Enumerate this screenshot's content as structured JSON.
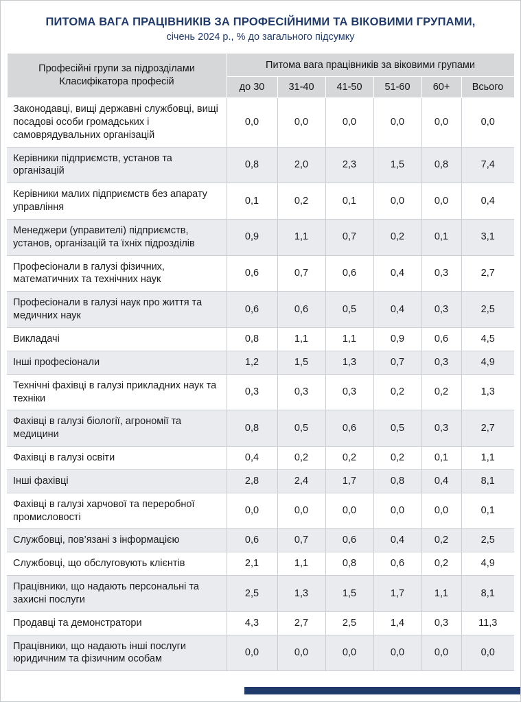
{
  "header": {
    "title": "ПИТОМА ВАГА ПРАЦІВНИКІВ ЗА ПРОФЕСІЙНИМИ ТА ВІКОВИМИ ГРУПАМИ,",
    "subtitle": "січень 2024 р., % до загального підсумку"
  },
  "colors": {
    "accent_navy": "#1f3a6b",
    "header_bg": "#d5d7d9",
    "stripe_bg": "#e9ebee"
  },
  "table": {
    "row_header": "Професійні групи за підрозділами Класифікатора професій",
    "col_group_header": "Питома вага працівників за віковими групами",
    "columns": [
      "до 30",
      "31-40",
      "41-50",
      "51-60",
      "60+",
      "Всього"
    ],
    "rows": [
      {
        "name": "Законодавці, вищі державні службовці, вищі посадові особи громадських і самоврядувальних організацій",
        "values": [
          "0,0",
          "0,0",
          "0,0",
          "0,0",
          "0,0",
          "0,0"
        ]
      },
      {
        "name": "Керівники підприємств, установ та організацій",
        "values": [
          "0,8",
          "2,0",
          "2,3",
          "1,5",
          "0,8",
          "7,4"
        ]
      },
      {
        "name": "Керівники малих підприємств без апарату управління",
        "values": [
          "0,1",
          "0,2",
          "0,1",
          "0,0",
          "0,0",
          "0,4"
        ]
      },
      {
        "name": "Менеджери (управителі) підприємств, установ, організацій та їхніх підрозділів",
        "values": [
          "0,9",
          "1,1",
          "0,7",
          "0,2",
          "0,1",
          "3,1"
        ]
      },
      {
        "name": "Професіонали в галузі фізичних, математичних та технічних наук",
        "values": [
          "0,6",
          "0,7",
          "0,6",
          "0,4",
          "0,3",
          "2,7"
        ]
      },
      {
        "name": "Професіонали в галузі наук про життя та медичних наук",
        "values": [
          "0,6",
          "0,6",
          "0,5",
          "0,4",
          "0,3",
          "2,5"
        ]
      },
      {
        "name": "Викладачі",
        "values": [
          "0,8",
          "1,1",
          "1,1",
          "0,9",
          "0,6",
          "4,5"
        ]
      },
      {
        "name": "Інші професіонали",
        "values": [
          "1,2",
          "1,5",
          "1,3",
          "0,7",
          "0,3",
          "4,9"
        ]
      },
      {
        "name": "Технічні фахівці в галузі прикладних наук та техніки",
        "values": [
          "0,3",
          "0,3",
          "0,3",
          "0,2",
          "0,2",
          "1,3"
        ]
      },
      {
        "name": "Фахівці в галузі біології, агрономії та медицини",
        "values": [
          "0,8",
          "0,5",
          "0,6",
          "0,5",
          "0,3",
          "2,7"
        ]
      },
      {
        "name": "Фахівці в галузі освіти",
        "values": [
          "0,4",
          "0,2",
          "0,2",
          "0,2",
          "0,1",
          "1,1"
        ]
      },
      {
        "name": "Інші фахівці",
        "values": [
          "2,8",
          "2,4",
          "1,7",
          "0,8",
          "0,4",
          "8,1"
        ]
      },
      {
        "name": "Фахівці в галузі харчової та переробної промисловості",
        "values": [
          "0,0",
          "0,0",
          "0,0",
          "0,0",
          "0,0",
          "0,1"
        ]
      },
      {
        "name": "Службовці, пов’язані з інформацією",
        "values": [
          "0,6",
          "0,7",
          "0,6",
          "0,4",
          "0,2",
          "2,5"
        ]
      },
      {
        "name": "Службовці, що обслуговують клієнтів",
        "values": [
          "2,1",
          "1,1",
          "0,8",
          "0,6",
          "0,2",
          "4,9"
        ]
      },
      {
        "name": "Працівники, що надають персональні та захисні послуги",
        "values": [
          "2,5",
          "1,3",
          "1,5",
          "1,7",
          "1,1",
          "8,1"
        ]
      },
      {
        "name": "Продавці та демонстратори",
        "values": [
          "4,3",
          "2,7",
          "2,5",
          "1,4",
          "0,3",
          "11,3"
        ]
      },
      {
        "name": "Працівники, що надають інші послуги юридичним та фізичним особам",
        "values": [
          "0,0",
          "0,0",
          "0,0",
          "0,0",
          "0,0",
          "0,0"
        ]
      }
    ]
  }
}
